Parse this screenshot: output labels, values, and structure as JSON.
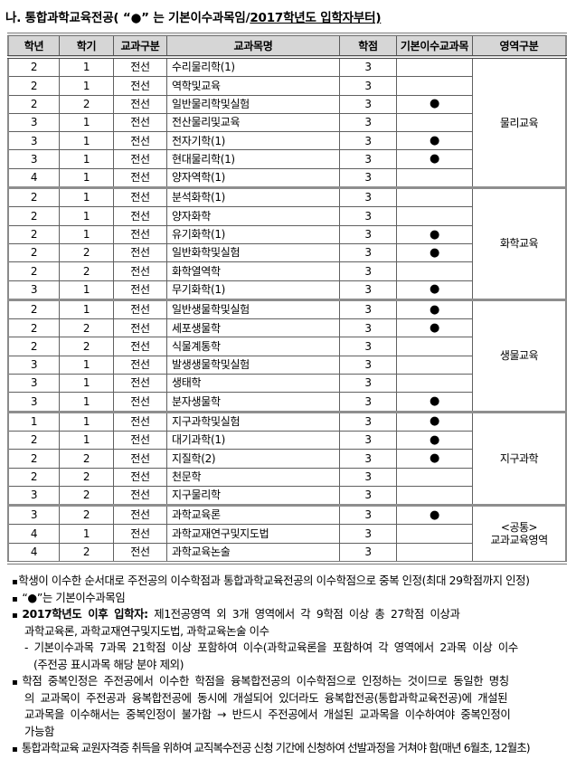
{
  "title": {
    "prefix": "나. 통합과학교육전공( ",
    "quoted": "“●” 는 기본이수과목임/",
    "underlined": "2017학년도 입학자부터)"
  },
  "table": {
    "headers": [
      "학년",
      "학기",
      "교과구분",
      "교과목명",
      "학점",
      "기본이수교과목",
      "영역구분"
    ],
    "bullet_symbol": "●",
    "sections": [
      {
        "area": "물리교육",
        "rows": [
          {
            "grade": "2",
            "semester": "1",
            "category": "전선",
            "course": "수리물리학(1)",
            "credits": "3",
            "basic": false
          },
          {
            "grade": "2",
            "semester": "1",
            "category": "전선",
            "course": "역학및교육",
            "credits": "3",
            "basic": false
          },
          {
            "grade": "2",
            "semester": "2",
            "category": "전선",
            "course": "일반물리학및실험",
            "credits": "3",
            "basic": true
          },
          {
            "grade": "3",
            "semester": "1",
            "category": "전선",
            "course": "전산물리및교육",
            "credits": "3",
            "basic": false
          },
          {
            "grade": "3",
            "semester": "1",
            "category": "전선",
            "course": "전자기학(1)",
            "credits": "3",
            "basic": true
          },
          {
            "grade": "3",
            "semester": "1",
            "category": "전선",
            "course": "현대물리학(1)",
            "credits": "3",
            "basic": true
          },
          {
            "grade": "4",
            "semester": "1",
            "category": "전선",
            "course": "양자역학(1)",
            "credits": "3",
            "basic": false
          }
        ]
      },
      {
        "area": "화학교육",
        "rows": [
          {
            "grade": "2",
            "semester": "1",
            "category": "전선",
            "course": "분석화학(1)",
            "credits": "3",
            "basic": false
          },
          {
            "grade": "2",
            "semester": "1",
            "category": "전선",
            "course": "양자화학",
            "credits": "3",
            "basic": false
          },
          {
            "grade": "2",
            "semester": "1",
            "category": "전선",
            "course": "유기화학(1)",
            "credits": "3",
            "basic": true
          },
          {
            "grade": "2",
            "semester": "2",
            "category": "전선",
            "course": "일반화학및실험",
            "credits": "3",
            "basic": true
          },
          {
            "grade": "2",
            "semester": "2",
            "category": "전선",
            "course": "화학열역학",
            "credits": "3",
            "basic": false
          },
          {
            "grade": "3",
            "semester": "1",
            "category": "전선",
            "course": "무기화학(1)",
            "credits": "3",
            "basic": true
          }
        ]
      },
      {
        "area": "생물교육",
        "rows": [
          {
            "grade": "2",
            "semester": "1",
            "category": "전선",
            "course": "일반생물학및실험",
            "credits": "3",
            "basic": true
          },
          {
            "grade": "2",
            "semester": "2",
            "category": "전선",
            "course": "세포생물학",
            "credits": "3",
            "basic": true
          },
          {
            "grade": "2",
            "semester": "2",
            "category": "전선",
            "course": "식물계통학",
            "credits": "3",
            "basic": false
          },
          {
            "grade": "3",
            "semester": "1",
            "category": "전선",
            "course": "발생생물학및실험",
            "credits": "3",
            "basic": false
          },
          {
            "grade": "3",
            "semester": "1",
            "category": "전선",
            "course": "생태학",
            "credits": "3",
            "basic": false
          },
          {
            "grade": "3",
            "semester": "1",
            "category": "전선",
            "course": "분자생물학",
            "credits": "3",
            "basic": true
          }
        ]
      },
      {
        "area": "지구과학",
        "rows": [
          {
            "grade": "1",
            "semester": "1",
            "category": "전선",
            "course": "지구과학및실험",
            "credits": "3",
            "basic": true
          },
          {
            "grade": "2",
            "semester": "1",
            "category": "전선",
            "course": "대기과학(1)",
            "credits": "3",
            "basic": true
          },
          {
            "grade": "2",
            "semester": "2",
            "category": "전선",
            "course": "지질학(2)",
            "credits": "3",
            "basic": true
          },
          {
            "grade": "2",
            "semester": "2",
            "category": "전선",
            "course": "천문학",
            "credits": "3",
            "basic": false
          },
          {
            "grade": "3",
            "semester": "2",
            "category": "전선",
            "course": "지구물리학",
            "credits": "3",
            "basic": false
          }
        ]
      },
      {
        "area": "<공통>\n교과교육영역",
        "rows": [
          {
            "grade": "3",
            "semester": "2",
            "category": "전선",
            "course": "과학교육론",
            "credits": "3",
            "basic": true
          },
          {
            "grade": "4",
            "semester": "1",
            "category": "전선",
            "course": "과학교재연구및지도법",
            "credits": "3",
            "basic": false
          },
          {
            "grade": "4",
            "semester": "2",
            "category": "전선",
            "course": "과학교육논술",
            "credits": "3",
            "basic": false
          }
        ]
      }
    ]
  },
  "notes": [
    {
      "bullet": "▪",
      "tight": true,
      "indent": 0,
      "bold": "",
      "text": "학생이 이수한 순서대로 주전공의 이수학점과 통합과학교육전공의 이수학점으로 중복 인정(최대 29학점까지 인정)",
      "spread": false,
      "condensed": false
    },
    {
      "bullet": "▪",
      "tight": false,
      "indent": 0,
      "bold": "",
      "text": "“●”는 기본이수과목임",
      "spread": false,
      "condensed": false
    },
    {
      "bullet": "▪",
      "tight": false,
      "indent": 0,
      "bold": "2017학년도 이후 입학자:",
      "text": " 제1전공영역 외 3개 영역에서 각 9학점 이상 총 27학점 이상과",
      "spread": true,
      "condensed": false
    },
    {
      "bullet": "",
      "tight": false,
      "indent": 1,
      "bold": "",
      "text": "과학교육론, 과학교재연구및지도법, 과학교육논술 이수",
      "spread": false,
      "condensed": false
    },
    {
      "bullet": "",
      "tight": false,
      "indent": 1,
      "bold": "",
      "text": "- 기본이수과목 7과목 21학점 이상 포함하여 이수(과학교육론을 포함하여 각 영역에서 2과목 이상 이수",
      "spread": true,
      "condensed": false
    },
    {
      "bullet": "",
      "tight": false,
      "indent": 2,
      "bold": "",
      "text": "(주전공 표시과목 해당 분야 제외)",
      "spread": false,
      "condensed": false
    },
    {
      "bullet": "▪",
      "tight": false,
      "indent": 0,
      "bold": "",
      "text": "학점 중복인정은 주전공에서 이수한 학점을 융복합전공의 이수학점으로 인정하는 것이므로 동일한 명칭",
      "spread": true,
      "condensed": false
    },
    {
      "bullet": "",
      "tight": false,
      "indent": 1,
      "bold": "",
      "text": "의 교과목이 주전공과 융복합전공에 동시에 개설되어 있더라도 융복합전공(통합과학교육전공)에 개설된",
      "spread": true,
      "condensed": false
    },
    {
      "bullet": "",
      "tight": false,
      "indent": 1,
      "bold": "",
      "text": "교과목을 이수해서는 중복인정이 불가함 → 반드시 주전공에서 개설된 교과목을 이수하여야 중복인정이",
      "spread": true,
      "condensed": false
    },
    {
      "bullet": "",
      "tight": false,
      "indent": 1,
      "bold": "",
      "text": "가능함",
      "spread": false,
      "condensed": false
    },
    {
      "bullet": "▪",
      "tight": false,
      "indent": 0,
      "bold": "",
      "text": "통합과학교육 교원자격증 취득을 위하여 교직복수전공 신청 기간에 신청하여 선발과정을 거쳐야 함(매년 6월초, 12월초)",
      "spread": false,
      "condensed": true
    }
  ]
}
